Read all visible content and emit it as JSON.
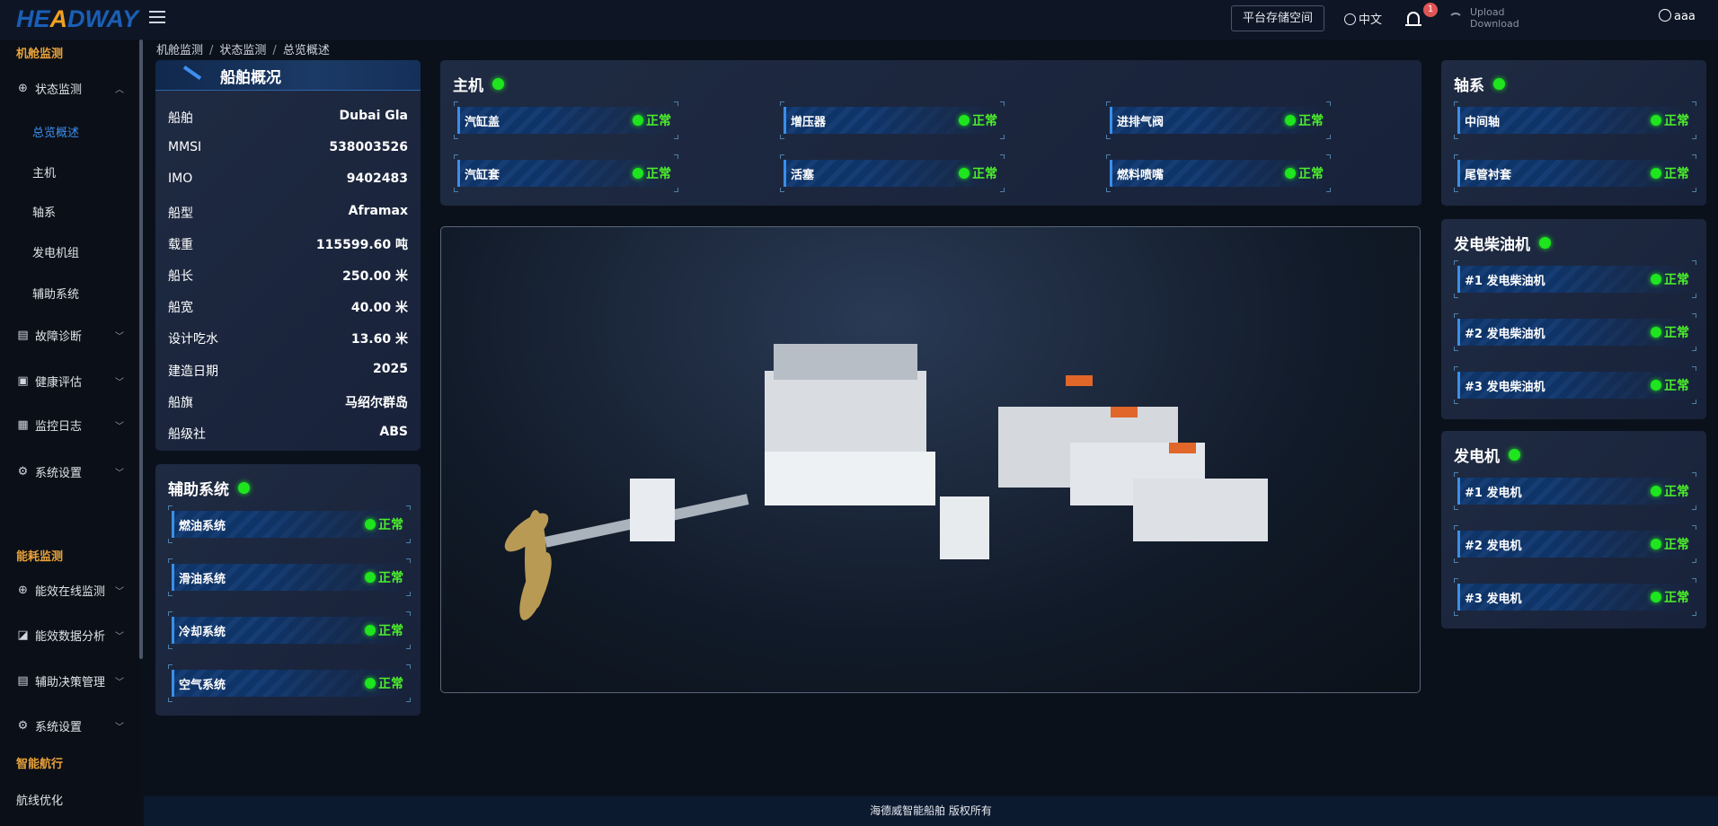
{
  "header": {
    "logo": "HEADWAY",
    "storage_button": "平台存储空间",
    "language": "中文",
    "notification_count": "1",
    "upload": "Upload",
    "download": "Download",
    "user": "aaa"
  },
  "sidebar": {
    "sections": [
      {
        "title": "机舱监测",
        "items": [
          {
            "label": "状态监测",
            "icon": "crosshair-icon",
            "expanded": true,
            "children": [
              "总览概述",
              "主机",
              "轴系",
              "发电机组",
              "辅助系统"
            ],
            "active_child": "总览概述"
          },
          {
            "label": "故障诊断",
            "icon": "diagnosis-icon"
          },
          {
            "label": "健康评估",
            "icon": "clipboard-icon"
          },
          {
            "label": "监控日志",
            "icon": "log-icon"
          },
          {
            "label": "系统设置",
            "icon": "gear-icon"
          }
        ]
      },
      {
        "title": "能耗监测",
        "items": [
          {
            "label": "能效在线监测",
            "icon": "crosshair-icon"
          },
          {
            "label": "能效数据分析",
            "icon": "chart-icon"
          },
          {
            "label": "辅助决策管理",
            "icon": "decision-icon"
          },
          {
            "label": "系统设置",
            "icon": "gear-icon"
          }
        ]
      },
      {
        "title": "智能航行",
        "items": [
          {
            "label": "航线优化"
          }
        ]
      }
    ]
  },
  "breadcrumb": [
    "机舱监测",
    "状态监测",
    "总览概述"
  ],
  "ship": {
    "title": "船舶概况",
    "rows": [
      {
        "k": "船舶",
        "v": "Dubai Gla"
      },
      {
        "k": "MMSI",
        "v": "538003526"
      },
      {
        "k": "IMO",
        "v": "9402483"
      },
      {
        "k": "船型",
        "v": "Aframax"
      },
      {
        "k": "载重",
        "v": "115599.60 吨"
      },
      {
        "k": "船长",
        "v": "250.00 米"
      },
      {
        "k": "船宽",
        "v": "40.00 米"
      },
      {
        "k": "设计吃水",
        "v": "13.60 米"
      },
      {
        "k": "建造日期",
        "v": "2025"
      },
      {
        "k": "船旗",
        "v": "马绍尔群岛"
      },
      {
        "k": "船级社",
        "v": "ABS"
      }
    ]
  },
  "aux": {
    "title": "辅助系统",
    "items": [
      {
        "label": "燃油系统",
        "status": "正常"
      },
      {
        "label": "滑油系统",
        "status": "正常"
      },
      {
        "label": "冷却系统",
        "status": "正常"
      },
      {
        "label": "空气系统",
        "status": "正常"
      }
    ]
  },
  "main_engine": {
    "title": "主机",
    "items": [
      {
        "label": "汽缸盖",
        "status": "正常"
      },
      {
        "label": "增压器",
        "status": "正常"
      },
      {
        "label": "进排气阀",
        "status": "正常"
      },
      {
        "label": "汽缸套",
        "status": "正常"
      },
      {
        "label": "活塞",
        "status": "正常"
      },
      {
        "label": "燃料喷嘴",
        "status": "正常"
      }
    ]
  },
  "shafting": {
    "title": "轴系",
    "items": [
      {
        "label": "中间轴",
        "status": "正常"
      },
      {
        "label": "尾管衬套",
        "status": "正常"
      }
    ]
  },
  "gen_diesel": {
    "title": "发电柴油机",
    "items": [
      {
        "label": "#1 发电柴油机",
        "status": "正常"
      },
      {
        "label": "#2 发电柴油机",
        "status": "正常"
      },
      {
        "label": "#3 发电柴油机",
        "status": "正常"
      }
    ]
  },
  "generator": {
    "title": "发电机",
    "items": [
      {
        "label": "#1 发电机",
        "status": "正常"
      },
      {
        "label": "#2 发电机",
        "status": "正常"
      },
      {
        "label": "#3 发电机",
        "status": "正常"
      }
    ]
  },
  "footer": "海德威智能船舶 版权所有",
  "colors": {
    "accent": "#3d8ff0",
    "section": "#e8a23a",
    "ok": "#1ee51e",
    "ok_text": "#4cf02a"
  }
}
